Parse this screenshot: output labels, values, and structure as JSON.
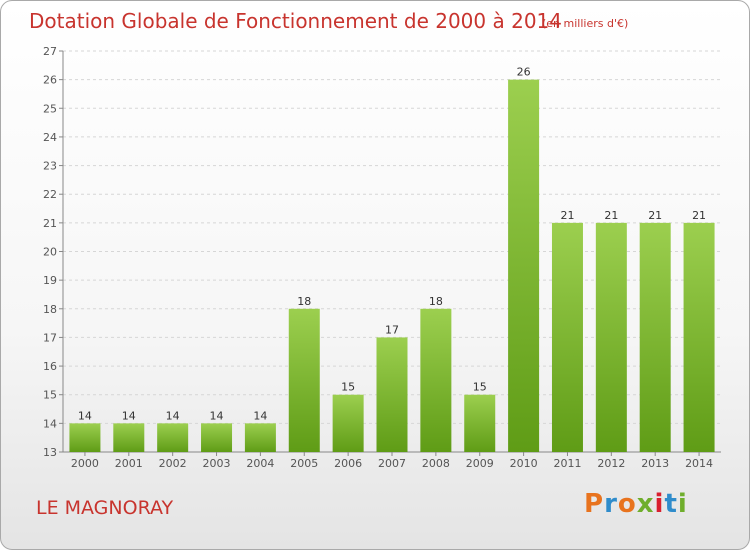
{
  "header": {
    "title": "Dotation Globale de Fonctionnement de 2000 à 2014",
    "subtitle": "(en milliers d'€)"
  },
  "footer": {
    "place": "LE MAGNORAY",
    "logo_text": "Proxiti"
  },
  "colors": {
    "accent": "#c8342e",
    "bar_light": "#9ccf4f",
    "bar_dark": "#5f9c16"
  },
  "chart_data": {
    "type": "bar",
    "categories": [
      "2000",
      "2001",
      "2002",
      "2003",
      "2004",
      "2005",
      "2006",
      "2007",
      "2008",
      "2009",
      "2010",
      "2011",
      "2012",
      "2013",
      "2014"
    ],
    "values": [
      14,
      14,
      14,
      14,
      14,
      18,
      15,
      17,
      18,
      15,
      26,
      21,
      21,
      21,
      21
    ],
    "ylim": [
      13,
      27
    ],
    "yticks": [
      13,
      14,
      15,
      16,
      17,
      18,
      19,
      20,
      21,
      22,
      23,
      24,
      25,
      26,
      27
    ],
    "grid": true,
    "legend": "none"
  }
}
